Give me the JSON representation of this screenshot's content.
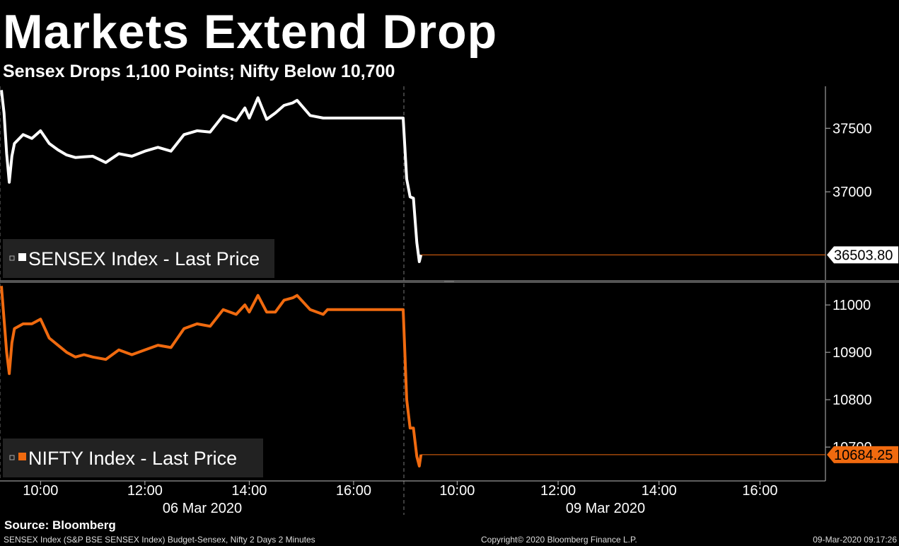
{
  "title": "Markets Extend Drop",
  "subtitle": "Sensex Drops 1,100 Points; Nifty Below 10,700",
  "source": "Source: Bloomberg",
  "footer": {
    "left": "SENSEX Index (S&P BSE SENSEX Index) Budget-Sensex, Nifty 2 Days 2 Minutes",
    "middle": "Copyright© 2020 Bloomberg Finance L.P.",
    "right": "09-Mar-2020 09:17:26"
  },
  "colors": {
    "background": "#000000",
    "sensex": "#ffffff",
    "nifty": "#f06a0f",
    "last_price_line": "#f06a0f"
  },
  "chart_data": [
    {
      "type": "line",
      "legend": "SENSEX Index - Last Price",
      "legend_position": "bottom-left",
      "last_value_label": "36503.80",
      "ylim": [
        36300,
        37830
      ],
      "y_ticks": [
        37000,
        37500
      ],
      "y_tick_labels": [
        "37000",
        "37500"
      ],
      "x_tick_labels": [
        "10:00",
        "12:00",
        "14:00",
        "16:00",
        "10:00",
        "12:00",
        "14:00",
        "16:00"
      ],
      "date_labels": [
        "06 Mar 2020",
        "09 Mar 2020"
      ],
      "grid": false,
      "series": [
        {
          "x": [
            "06 Mar 09:15",
            "06 Mar 09:18",
            "06 Mar 09:21",
            "06 Mar 09:24",
            "06 Mar 09:27",
            "06 Mar 09:30",
            "06 Mar 09:40",
            "06 Mar 09:50",
            "06 Mar 10:00",
            "06 Mar 10:10",
            "06 Mar 10:20",
            "06 Mar 10:30",
            "06 Mar 10:40",
            "06 Mar 10:50",
            "06 Mar 11:00",
            "06 Mar 11:15",
            "06 Mar 11:30",
            "06 Mar 11:45",
            "06 Mar 12:00",
            "06 Mar 12:15",
            "06 Mar 12:30",
            "06 Mar 12:45",
            "06 Mar 13:00",
            "06 Mar 13:15",
            "06 Mar 13:30",
            "06 Mar 13:45",
            "06 Mar 13:55",
            "06 Mar 14:00",
            "06 Mar 14:10",
            "06 Mar 14:20",
            "06 Mar 14:30",
            "06 Mar 14:40",
            "06 Mar 14:50",
            "06 Mar 14:55",
            "06 Mar 15:10",
            "06 Mar 15:25",
            "06 Mar 15:30",
            "06 Mar 16:00",
            "06 Mar 16:30",
            "06 Mar 16:57",
            "09 Mar 09:00",
            "09 Mar 09:04",
            "09 Mar 09:08",
            "09 Mar 09:12",
            "09 Mar 09:15",
            "09 Mar 09:17"
          ],
          "y": [
            37800,
            37620,
            37300,
            37075,
            37280,
            37380,
            37450,
            37420,
            37480,
            37380,
            37330,
            37290,
            37270,
            37275,
            37280,
            37230,
            37300,
            37280,
            37320,
            37350,
            37320,
            37450,
            37480,
            37470,
            37600,
            37560,
            37660,
            37580,
            37740,
            37570,
            37620,
            37680,
            37700,
            37720,
            37600,
            37580,
            37580,
            37580,
            37580,
            37580,
            37100,
            36960,
            36950,
            36600,
            36450,
            36504
          ]
        }
      ]
    },
    {
      "type": "line",
      "legend": "NIFTY Index - Last Price",
      "legend_position": "bottom-left",
      "last_value_label": "10684.25",
      "ylim": [
        10630,
        11045
      ],
      "y_ticks": [
        10700,
        10800,
        10900,
        11000
      ],
      "y_tick_labels": [
        "10700",
        "10800",
        "10900",
        "11000"
      ],
      "x_tick_labels": [
        "10:00",
        "12:00",
        "14:00",
        "16:00",
        "10:00",
        "12:00",
        "14:00",
        "16:00"
      ],
      "date_labels": [
        "06 Mar 2020",
        "09 Mar 2020"
      ],
      "grid": false,
      "series": [
        {
          "x": [
            "06 Mar 09:15",
            "06 Mar 09:18",
            "06 Mar 09:21",
            "06 Mar 09:24",
            "06 Mar 09:27",
            "06 Mar 09:30",
            "06 Mar 09:40",
            "06 Mar 09:50",
            "06 Mar 10:00",
            "06 Mar 10:10",
            "06 Mar 10:20",
            "06 Mar 10:30",
            "06 Mar 10:40",
            "06 Mar 10:50",
            "06 Mar 11:00",
            "06 Mar 11:15",
            "06 Mar 11:30",
            "06 Mar 11:45",
            "06 Mar 12:00",
            "06 Mar 12:15",
            "06 Mar 12:30",
            "06 Mar 12:45",
            "06 Mar 13:00",
            "06 Mar 13:15",
            "06 Mar 13:30",
            "06 Mar 13:45",
            "06 Mar 13:55",
            "06 Mar 14:00",
            "06 Mar 14:10",
            "06 Mar 14:20",
            "06 Mar 14:30",
            "06 Mar 14:40",
            "06 Mar 14:50",
            "06 Mar 14:55",
            "06 Mar 15:10",
            "06 Mar 15:25",
            "06 Mar 15:30",
            "06 Mar 16:00",
            "06 Mar 16:30",
            "06 Mar 16:57",
            "09 Mar 09:00",
            "09 Mar 09:04",
            "09 Mar 09:08",
            "09 Mar 09:12",
            "09 Mar 09:15",
            "09 Mar 09:17"
          ],
          "y": [
            11040,
            10970,
            10900,
            10855,
            10920,
            10950,
            10960,
            10960,
            10970,
            10930,
            10915,
            10900,
            10890,
            10895,
            10890,
            10885,
            10905,
            10895,
            10905,
            10915,
            10910,
            10950,
            10960,
            10955,
            10990,
            10980,
            11000,
            10985,
            11020,
            10985,
            10985,
            11010,
            11015,
            11020,
            10990,
            10980,
            10990,
            10990,
            10990,
            10990,
            10800,
            10740,
            10740,
            10680,
            10660,
            10684
          ]
        }
      ]
    }
  ]
}
